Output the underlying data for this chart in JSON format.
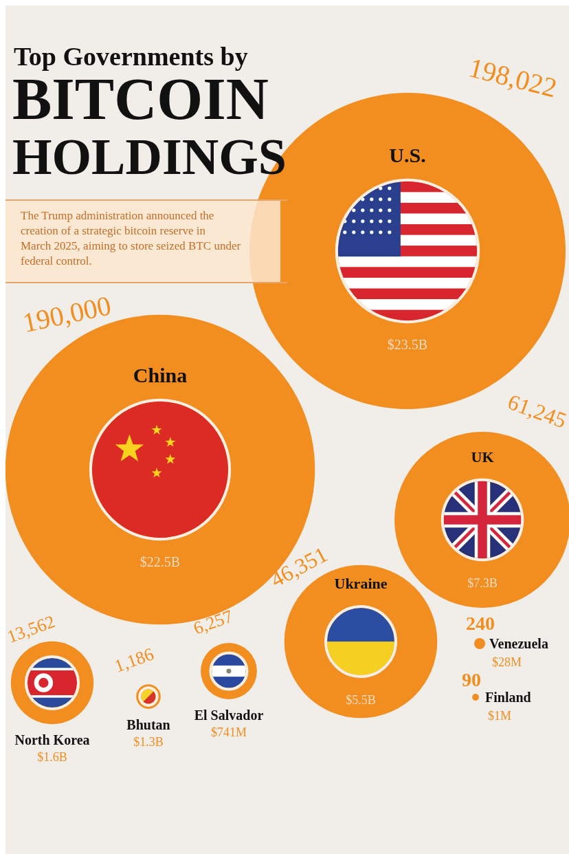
{
  "chart_data": {
    "type": "other",
    "title": "Top Governments by",
    "subtitle": "BITCOIN HOLDINGS",
    "annotations": [
      "The Trump administration announced the creation of a strategic bitcoin reserve in March 2025, aiming to store seized BTC under federal control.",
      {
        "text": "$23.5B",
        "x": "U.S."
      },
      {
        "text": "$22.5B",
        "x": "China"
      },
      {
        "text": "$7.3B",
        "x": "UK"
      },
      {
        "text": "$5.5B",
        "x": "Ukraine"
      },
      {
        "text": "$1.6B",
        "x": "North Korea"
      },
      {
        "text": "$1.3B",
        "x": "Bhutan"
      },
      {
        "text": "$741M",
        "x": "El Salvador"
      },
      {
        "text": "$28M",
        "x": "Venezuela"
      },
      {
        "text": "$1M",
        "x": "Finland"
      }
    ],
    "categories": [
      "U.S.",
      "China",
      "UK",
      "Ukraine",
      "North Korea",
      "Bhutan",
      "El Salvador",
      "Venezuela",
      "Finland"
    ],
    "series": [
      {
        "color": "#f28d1f",
        "values": [
          198022,
          190000,
          61245,
          46351,
          13562,
          1186,
          6257,
          240,
          90
        ],
        "value_labels": [
          "198,022",
          "190,000",
          "61,245",
          "46,351",
          "13,562",
          "1,186",
          "6,257",
          "240",
          "90"
        ]
      }
    ]
  }
}
